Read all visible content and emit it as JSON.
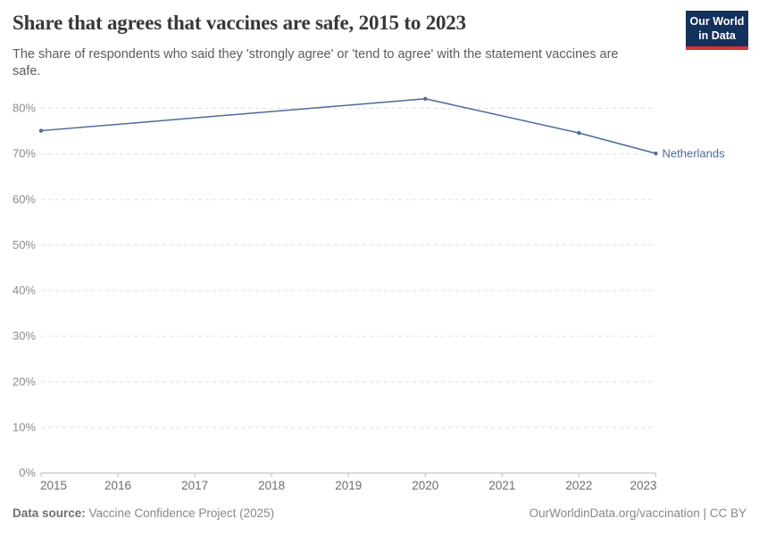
{
  "header": {
    "title": "Share that agrees that vaccines are safe, 2015 to 2023",
    "subtitle": "The share of respondents who said they 'strongly agree' or 'tend to agree' with the statement vaccines are safe.",
    "logo": {
      "line1": "Our World",
      "line2": "in Data",
      "bg_color": "#14305c",
      "accent_color": "#d4332e"
    }
  },
  "footer": {
    "datasource_label": "Data source:",
    "datasource": "Vaccine Confidence Project (2025)",
    "credit": "OurWorldinData.org/vaccination | CC BY"
  },
  "chart_data": {
    "type": "line",
    "title": "Share that agrees that vaccines are safe, 2015 to 2023",
    "xlabel": "",
    "ylabel": "",
    "xlim": [
      2015,
      2023
    ],
    "ylim": [
      0,
      80
    ],
    "x_ticks": [
      2015,
      2016,
      2017,
      2018,
      2019,
      2020,
      2021,
      2022,
      2023
    ],
    "y_ticks": [
      0,
      10,
      20,
      30,
      40,
      50,
      60,
      70,
      80
    ],
    "y_tick_format": "{}%",
    "grid": "horizontal-dashed",
    "legend_position": "end-of-line-label",
    "series": [
      {
        "name": "Netherlands",
        "color": "#4c6a9c",
        "points": [
          {
            "x": 2015,
            "y": 75
          },
          {
            "x": 2020,
            "y": 82
          },
          {
            "x": 2022,
            "y": 74.5
          },
          {
            "x": 2023,
            "y": 70
          }
        ]
      }
    ],
    "style": {
      "gridline_color": "#e0e0e0",
      "axis_color": "#bdbdbd",
      "y_label_color": "#8c8c8c",
      "x_label_color": "#6d6d6d"
    }
  }
}
